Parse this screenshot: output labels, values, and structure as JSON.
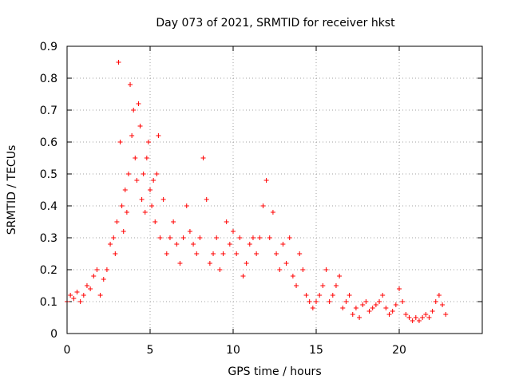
{
  "chart_data": {
    "type": "scatter",
    "title": "Day 073 of 2021, SRMTID for receiver hkst",
    "xlabel": "GPS time / hours",
    "ylabel": "SRMTID / TECUs",
    "xlim": [
      0,
      25
    ],
    "ylim": [
      0,
      0.9
    ],
    "xticks": [
      0,
      5,
      10,
      15,
      20
    ],
    "yticks": [
      0,
      0.1,
      0.2,
      0.3,
      0.4,
      0.5,
      0.6,
      0.7,
      0.8,
      0.9
    ],
    "grid": true,
    "legend": "none",
    "marker": "+",
    "series": [
      {
        "name": "SRMTID",
        "color": "#ff0000",
        "x": [
          0.0,
          0.2,
          0.4,
          0.6,
          0.8,
          1.0,
          1.2,
          1.4,
          1.6,
          1.8,
          2.0,
          2.2,
          2.4,
          2.6,
          2.8,
          2.9,
          3.0,
          3.1,
          3.2,
          3.3,
          3.4,
          3.5,
          3.6,
          3.7,
          3.8,
          3.9,
          4.0,
          4.1,
          4.2,
          4.3,
          4.4,
          4.5,
          4.6,
          4.7,
          4.8,
          4.9,
          5.0,
          5.1,
          5.2,
          5.3,
          5.4,
          5.5,
          5.6,
          5.8,
          6.0,
          6.2,
          6.4,
          6.6,
          6.8,
          7.0,
          7.2,
          7.4,
          7.6,
          7.8,
          8.0,
          8.2,
          8.4,
          8.6,
          8.8,
          9.0,
          9.2,
          9.4,
          9.6,
          9.8,
          10.0,
          10.2,
          10.4,
          10.6,
          10.8,
          11.0,
          11.2,
          11.4,
          11.6,
          11.8,
          12.0,
          12.2,
          12.4,
          12.6,
          12.8,
          13.0,
          13.2,
          13.4,
          13.6,
          13.8,
          14.0,
          14.2,
          14.4,
          14.6,
          14.8,
          15.0,
          15.2,
          15.4,
          15.6,
          15.8,
          16.0,
          16.2,
          16.4,
          16.6,
          16.8,
          17.0,
          17.2,
          17.4,
          17.6,
          17.8,
          18.0,
          18.2,
          18.4,
          18.6,
          18.8,
          19.0,
          19.2,
          19.4,
          19.6,
          19.8,
          20.0,
          20.2,
          20.4,
          20.6,
          20.8,
          21.0,
          21.2,
          21.4,
          21.6,
          21.8,
          22.0,
          22.2,
          22.4,
          22.6,
          22.8
        ],
        "y": [
          0.1,
          0.12,
          0.11,
          0.13,
          0.1,
          0.12,
          0.15,
          0.14,
          0.18,
          0.2,
          0.12,
          0.17,
          0.2,
          0.28,
          0.3,
          0.25,
          0.35,
          0.85,
          0.6,
          0.4,
          0.32,
          0.45,
          0.38,
          0.5,
          0.78,
          0.62,
          0.7,
          0.55,
          0.48,
          0.72,
          0.65,
          0.42,
          0.5,
          0.38,
          0.55,
          0.6,
          0.45,
          0.4,
          0.48,
          0.35,
          0.5,
          0.62,
          0.3,
          0.42,
          0.25,
          0.3,
          0.35,
          0.28,
          0.22,
          0.3,
          0.4,
          0.32,
          0.28,
          0.25,
          0.3,
          0.55,
          0.42,
          0.22,
          0.25,
          0.3,
          0.2,
          0.25,
          0.35,
          0.28,
          0.32,
          0.25,
          0.3,
          0.18,
          0.22,
          0.28,
          0.3,
          0.25,
          0.3,
          0.4,
          0.48,
          0.3,
          0.38,
          0.25,
          0.2,
          0.28,
          0.22,
          0.3,
          0.18,
          0.15,
          0.25,
          0.2,
          0.12,
          0.1,
          0.08,
          0.1,
          0.12,
          0.15,
          0.2,
          0.1,
          0.12,
          0.15,
          0.18,
          0.08,
          0.1,
          0.12,
          0.06,
          0.08,
          0.05,
          0.09,
          0.1,
          0.07,
          0.08,
          0.09,
          0.1,
          0.12,
          0.08,
          0.06,
          0.07,
          0.09,
          0.14,
          0.1,
          0.06,
          0.05,
          0.04,
          0.05,
          0.04,
          0.05,
          0.06,
          0.05,
          0.07,
          0.1,
          0.12,
          0.09,
          0.06
        ]
      }
    ]
  }
}
